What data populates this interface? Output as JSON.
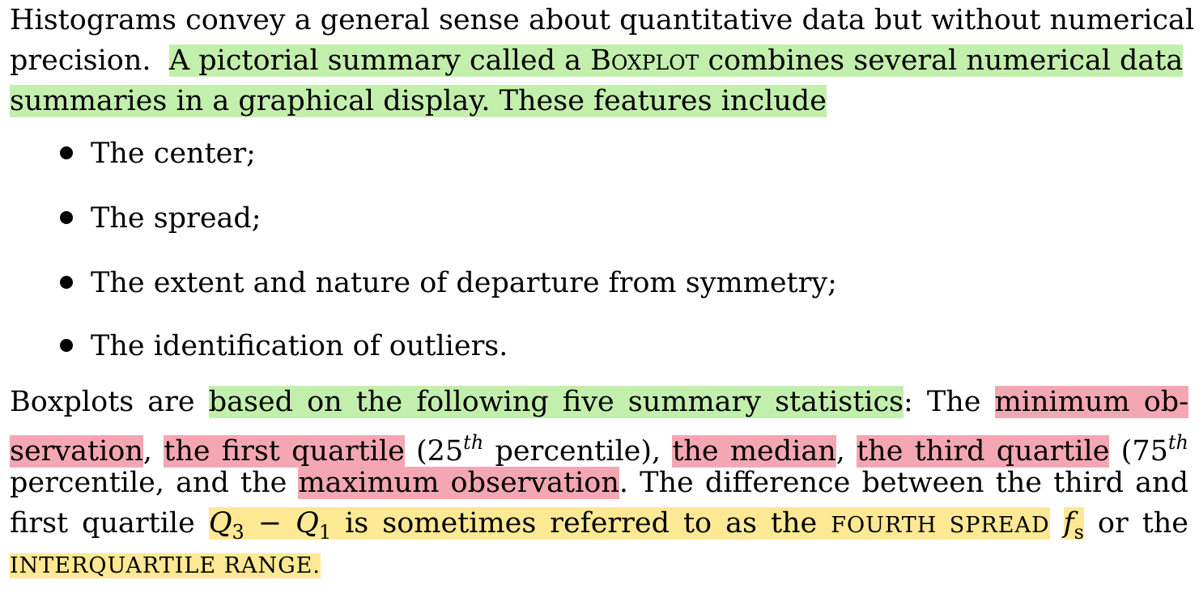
{
  "intro": {
    "line1": "Histograms convey a general sense about quantitative data but without numerical",
    "line2_plain": "precision.",
    "line2_hl_a": "A pictorial summary called a ",
    "line2_hl_sc": "Boxplot",
    "line2_hl_b": " combines several numerical data",
    "line3_hl": "summaries in a graphical display. These features include"
  },
  "bullets": [
    "The center;",
    "The spread;",
    "The extent and nature of departure from symmetry;",
    "The identification of outliers."
  ],
  "para2": {
    "l1_a": "Boxplots are ",
    "l1_hl_green": "based on the following five summary statistics",
    "l1_b": ": The ",
    "l1_hl_red": "minimum ob-",
    "l2_hl_red1": "servation",
    "l2_a": ", ",
    "l2_hl_red2": "the first quartile",
    "l2_b": " (25",
    "l2_sup1": "th",
    "l2_c": " percentile), ",
    "l2_hl_red3": "the median",
    "l2_d": ", ",
    "l2_hl_red4": "the third quartile",
    "l2_e": " (75",
    "l2_sup2": "th",
    "l3_a": "percentile, and the ",
    "l3_hl_red": "maximum observation",
    "l3_b": ". The difference between the third and",
    "l4_a": "first quartile ",
    "l4_q": "Q",
    "l4_sub3": "3",
    "l4_minus": " − ",
    "l4_sub1": "1",
    "l4_hl_text": " is sometimes referred to as the ",
    "l4_sc": "fourth spread",
    "l4_f": "f",
    "l4_fsub": "s",
    "l4_b": " or the",
    "l5_sc": "interquartile range."
  }
}
